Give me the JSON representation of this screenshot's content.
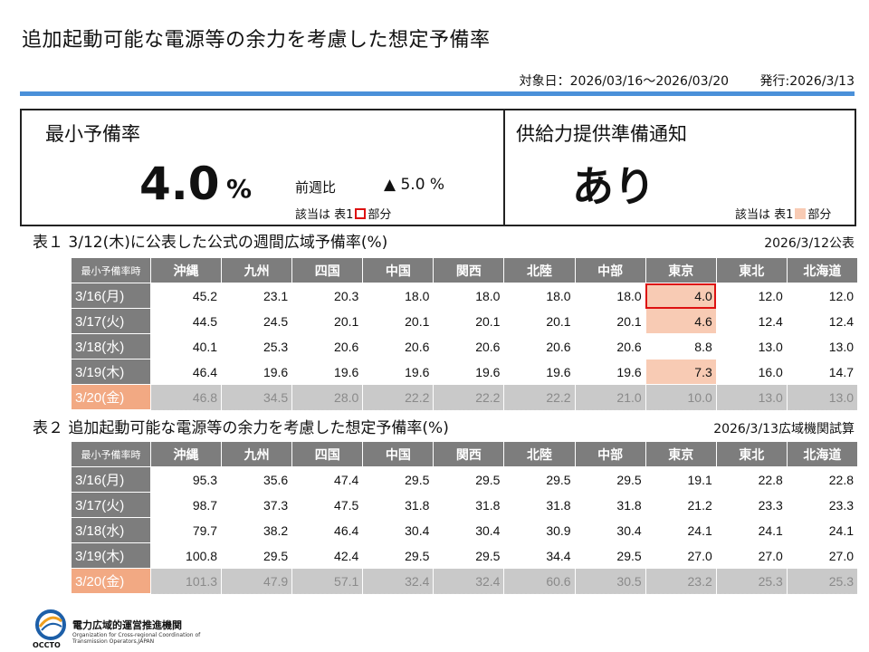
{
  "header": {
    "title": "追加起動可能な電源等の余力を考慮した想定予備率",
    "target_period": "対象日：2026/03/16〜2026/03/20",
    "issued": "発行:2026/3/13"
  },
  "summary": {
    "min_reserve_label": "最小予備率",
    "min_reserve_value": "4.0",
    "min_reserve_unit": "%",
    "compare_label": "前週比",
    "compare_value": "▲ 5.0 %",
    "note_prefix": "該当は 表1",
    "note_suffix": "部分",
    "notice_label": "供給力提供準備通知",
    "notice_value": "あり",
    "notice_note_prefix": "該当は 表1",
    "notice_note_suffix": "部分"
  },
  "table1": {
    "caption": "表１ 3/12(木)に公表した公式の週間広域予備率(%)",
    "date": "2026/3/12公表",
    "corner": "最小予備率時",
    "columns": [
      "沖縄",
      "九州",
      "四国",
      "中国",
      "関西",
      "北陸",
      "中部",
      "東京",
      "東北",
      "北海道"
    ],
    "rows": [
      {
        "label": "3/16(月)",
        "values": [
          "45.2",
          "23.1",
          "20.3",
          "18.0",
          "18.0",
          "18.0",
          "18.0",
          "4.0",
          "12.0",
          "12.0"
        ]
      },
      {
        "label": "3/17(火)",
        "values": [
          "44.5",
          "24.5",
          "20.1",
          "20.1",
          "20.1",
          "20.1",
          "20.1",
          "4.6",
          "12.4",
          "12.4"
        ]
      },
      {
        "label": "3/18(水)",
        "values": [
          "40.1",
          "25.3",
          "20.6",
          "20.6",
          "20.6",
          "20.6",
          "20.6",
          "8.8",
          "13.0",
          "13.0"
        ]
      },
      {
        "label": "3/19(木)",
        "values": [
          "46.4",
          "19.6",
          "19.6",
          "19.6",
          "19.6",
          "19.6",
          "19.6",
          "7.3",
          "16.0",
          "14.7"
        ]
      },
      {
        "label": "3/20(金)",
        "values": [
          "46.8",
          "34.5",
          "28.0",
          "22.2",
          "22.2",
          "22.2",
          "21.0",
          "10.0",
          "13.0",
          "13.0"
        ]
      }
    ]
  },
  "table2": {
    "caption": "表２ 追加起動可能な電源等の余力を考慮した想定予備率(%)",
    "date": "2026/3/13広域機関試算",
    "corner": "最小予備率時",
    "columns": [
      "沖縄",
      "九州",
      "四国",
      "中国",
      "関西",
      "北陸",
      "中部",
      "東京",
      "東北",
      "北海道"
    ],
    "rows": [
      {
        "label": "3/16(月)",
        "values": [
          "95.3",
          "35.6",
          "47.4",
          "29.5",
          "29.5",
          "29.5",
          "29.5",
          "19.1",
          "22.8",
          "22.8"
        ]
      },
      {
        "label": "3/17(火)",
        "values": [
          "98.7",
          "37.3",
          "47.5",
          "31.8",
          "31.8",
          "31.8",
          "31.8",
          "21.2",
          "23.3",
          "23.3"
        ]
      },
      {
        "label": "3/18(水)",
        "values": [
          "79.7",
          "38.2",
          "46.4",
          "30.4",
          "30.4",
          "30.9",
          "30.4",
          "24.1",
          "24.1",
          "24.1"
        ]
      },
      {
        "label": "3/19(木)",
        "values": [
          "100.8",
          "29.5",
          "42.4",
          "29.5",
          "29.5",
          "34.4",
          "29.5",
          "27.0",
          "27.0",
          "27.0"
        ]
      },
      {
        "label": "3/20(金)",
        "values": [
          "101.3",
          "47.9",
          "57.1",
          "32.4",
          "32.4",
          "60.6",
          "30.5",
          "23.2",
          "25.3",
          "25.3"
        ]
      }
    ]
  },
  "footer": {
    "org_jp": "電力広域的運営推進機関",
    "org_en_1": "Organization for Cross-regional Coordination of",
    "org_en_2": "Transmission Operators,JAPAN",
    "org_abbr": "OCCTO"
  },
  "colors": {
    "accent_rule": "#4a90d9",
    "highlight_pink": "#f8cbb4",
    "highlight_red": "#dd1111",
    "header_gray": "#7d7d7d",
    "friday_orange": "#f2a983"
  }
}
